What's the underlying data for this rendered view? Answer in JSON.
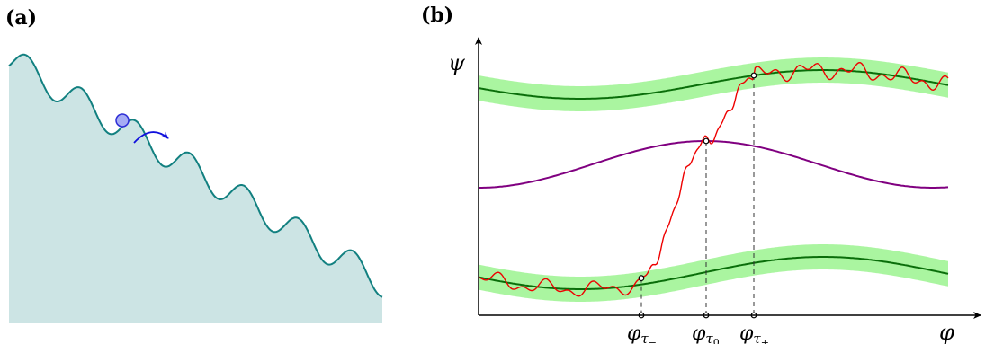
{
  "panel_a": {
    "label": "(a)",
    "colors": {
      "fill": "#cce4e4",
      "stroke": "#128080",
      "ball_fill": "#a6acf4",
      "ball_stroke": "#2d2dd6",
      "arrow": "#1010dd"
    },
    "icons": [
      "ball-icon",
      "curved-arrow-icon"
    ]
  },
  "panel_b": {
    "label": "(b)",
    "y_axis_label": "ψ",
    "x_axis_label": "φ",
    "ticks": [
      {
        "base": "φ",
        "sub": "τ",
        "subsub": "−"
      },
      {
        "base": "φ",
        "sub": "τ",
        "subsub": "0"
      },
      {
        "base": "φ",
        "sub": "τ",
        "subsub": "+"
      }
    ],
    "colors": {
      "band": "#aaf5a0",
      "center": "#0a6e0a",
      "separatrix": "#800080",
      "trajectory": "#ee0000",
      "guide": "#333333"
    }
  }
}
